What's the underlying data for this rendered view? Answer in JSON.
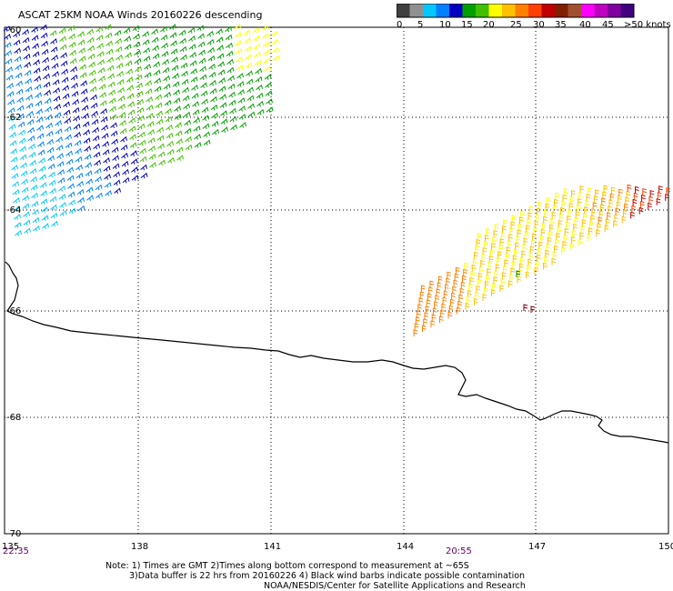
{
  "title": "ASCAT 25KM NOAA Winds 20160226 descending",
  "colorbar": {
    "colors": [
      "#404040",
      "#909090",
      "#00c8ff",
      "#0080ff",
      "#0000c0",
      "#00a000",
      "#40c000",
      "#ffff00",
      "#ffc000",
      "#ff8000",
      "#ff4000",
      "#c00000",
      "#802000",
      "#a05030",
      "#ff00ff",
      "#c000c0",
      "#8000a0",
      "#400080"
    ],
    "labels": [
      "0",
      "5",
      "10",
      "15",
      "20",
      "25",
      "30",
      "35",
      "40",
      "45",
      ">50 knots"
    ]
  },
  "map": {
    "lat_labels": [
      "-60",
      "-62",
      "-64",
      "-66",
      "-68",
      "-70"
    ],
    "lon_labels": [
      "135",
      "138",
      "141",
      "144",
      "147",
      "150"
    ],
    "grid_color": "#000000",
    "coast_color": "#000000"
  },
  "times": {
    "left": "22:35",
    "right": "20:55"
  },
  "notes": {
    "line1": "Note: 1) Times are GMT 2)Times along bottom correspond to measurement at ~65S",
    "line2": "3)Data buffer is 22 hrs from 20160226 4) Black wind barbs indicate possible contamination",
    "line3": "NOAA/NESDIS/Center for Satellite Applications and Research"
  }
}
